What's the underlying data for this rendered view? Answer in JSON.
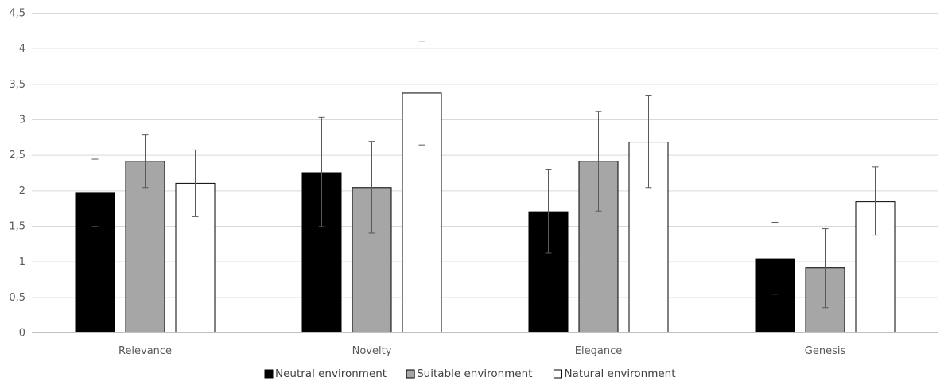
{
  "chart_data": {
    "type": "bar",
    "title": "",
    "xlabel": "",
    "ylabel": "",
    "categories": [
      "Relevance",
      "Novelty",
      "Elegance",
      "Genesis"
    ],
    "ylim": [
      0,
      4.5
    ],
    "yticks": [
      0,
      0.5,
      1,
      1.5,
      2,
      2.5,
      3,
      3.5,
      4,
      4.5
    ],
    "ytick_labels": [
      "0",
      "0,5",
      "1",
      "1,5",
      "2",
      "2,5",
      "3",
      "3,5",
      "4",
      "4,5"
    ],
    "grid": true,
    "legend_position": "bottom",
    "series": [
      {
        "name": "Neutral environment",
        "color": "#000000",
        "values": [
          1.96,
          2.25,
          1.7,
          1.04
        ],
        "err_low": [
          1.49,
          1.49,
          1.12,
          0.54
        ],
        "err_high": [
          2.44,
          3.03,
          2.29,
          1.55
        ]
      },
      {
        "name": "Suitable environment",
        "color": "#a6a6a6",
        "values": [
          2.41,
          2.04,
          2.41,
          0.91
        ],
        "err_low": [
          2.04,
          1.4,
          1.71,
          0.35
        ],
        "err_high": [
          2.78,
          2.69,
          3.11,
          1.46
        ]
      },
      {
        "name": "Natural environment",
        "color": "#ffffff",
        "values": [
          2.1,
          3.37,
          2.68,
          1.84
        ],
        "err_low": [
          1.63,
          2.64,
          2.04,
          1.37
        ],
        "err_high": [
          2.57,
          4.1,
          3.33,
          2.33
        ]
      }
    ]
  }
}
